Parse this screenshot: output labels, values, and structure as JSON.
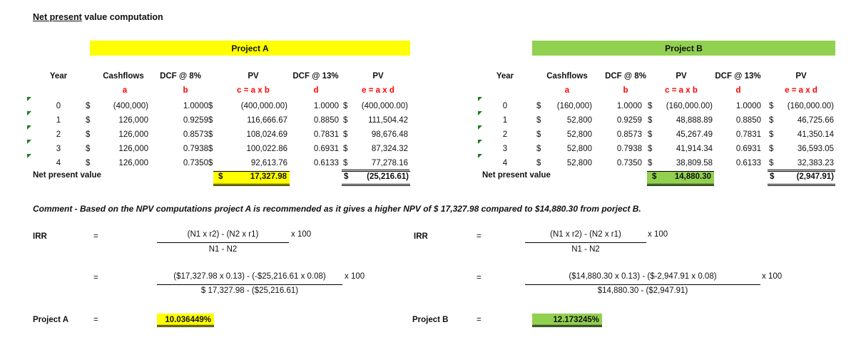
{
  "title": {
    "underlined": "Net present",
    "rest": " value computation"
  },
  "projects": [
    {
      "name": "Project A",
      "band_color": "#ffff00",
      "headers": [
        "Year",
        "Cashflows",
        "DCF @ 8%",
        "PV",
        "DCF @ 13%",
        "PV"
      ],
      "subheaders": [
        "",
        "a",
        "b",
        "c = a x b",
        "d",
        "e = a x d"
      ],
      "rows": [
        {
          "year": "0",
          "cur": "$",
          "cashflow": "(400,000)",
          "dcf8": "1.0000",
          "pv8_cur": "$",
          "pv8": "(400,000.00)",
          "dcf13": "1.0000",
          "pv13_cur": "$",
          "pv13": "(400,000.00)"
        },
        {
          "year": "1",
          "cur": "$",
          "cashflow": "126,000",
          "dcf8": "0.9259",
          "pv8_cur": "$",
          "pv8": "116,666.67",
          "dcf13": "0.8850",
          "pv13_cur": "$",
          "pv13": "111,504.42"
        },
        {
          "year": "2",
          "cur": "$",
          "cashflow": "126,000",
          "dcf8": "0.8573",
          "pv8_cur": "$",
          "pv8": "108,024.69",
          "dcf13": "0.7831",
          "pv13_cur": "$",
          "pv13": "98,676.48"
        },
        {
          "year": "3",
          "cur": "$",
          "cashflow": "126,000",
          "dcf8": "0.7938",
          "pv8_cur": "$",
          "pv8": "100,022.86",
          "dcf13": "0.6931",
          "pv13_cur": "$",
          "pv13": "87,324.32"
        },
        {
          "year": "4",
          "cur": "$",
          "cashflow": "126,000",
          "dcf8": "0.7350",
          "pv8_cur": "$",
          "pv8": "92,613.76",
          "dcf13": "0.6133",
          "pv13_cur": "$",
          "pv13": "77,278.16"
        }
      ],
      "npv_label": "Net present value",
      "npv8_cur": "$",
      "npv8": "17,327.98",
      "npv13_cur": "$",
      "npv13": "(25,216.61)"
    },
    {
      "name": "Project B",
      "band_color": "#92d050",
      "headers": [
        "Year",
        "Cashflows",
        "DCF @ 8%",
        "PV",
        "DCF @ 13%",
        "PV"
      ],
      "subheaders": [
        "",
        "a",
        "b",
        "c = a x b",
        "d",
        "e = a x d"
      ],
      "rows": [
        {
          "year": "0",
          "cur": "$",
          "cashflow": "(160,000)",
          "dcf8": "1.0000",
          "pv8_cur": "$",
          "pv8": "(160,000.00)",
          "dcf13": "1.0000",
          "pv13_cur": "$",
          "pv13": "(160,000.00)"
        },
        {
          "year": "1",
          "cur": "$",
          "cashflow": "52,800",
          "dcf8": "0.9259",
          "pv8_cur": "$",
          "pv8": "48,888.89",
          "dcf13": "0.8850",
          "pv13_cur": "$",
          "pv13": "46,725.66"
        },
        {
          "year": "2",
          "cur": "$",
          "cashflow": "52,800",
          "dcf8": "0.8573",
          "pv8_cur": "$",
          "pv8": "45,267.49",
          "dcf13": "0.7831",
          "pv13_cur": "$",
          "pv13": "41,350.14"
        },
        {
          "year": "3",
          "cur": "$",
          "cashflow": "52,800",
          "dcf8": "0.7938",
          "pv8_cur": "$",
          "pv8": "41,914.34",
          "dcf13": "0.6931",
          "pv13_cur": "$",
          "pv13": "36,593.05"
        },
        {
          "year": "4",
          "cur": "$",
          "cashflow": "52,800",
          "dcf8": "0.7350",
          "pv8_cur": "$",
          "pv8": "38,809.58",
          "dcf13": "0.6133",
          "pv13_cur": "$",
          "pv13": "32,383.23"
        }
      ],
      "npv_label": "Net present value",
      "npv8_cur": "$",
      "npv8": "14,880.30",
      "npv13_cur": "$",
      "npv13": "(2,947.91)"
    }
  ],
  "comment": "Comment - Based on the NPV computations project A is recommended as it gives a higher NPV of $ 17,327.98 compared to $14,880.30 from porject B.",
  "irr": [
    {
      "label": "IRR",
      "eq": "=",
      "formula_num": "(N1 x r2) - (N2 x r1)",
      "formula_den": "N1 - N2",
      "times": "x 100",
      "eq2": "=",
      "calc_num": "($17,327.98 x 0.13) - (-$25,216.61 x 0.08)",
      "calc_den": "$ 17,327.98 - ($25,216.61)",
      "times2": "x 100",
      "result_label": "Project A",
      "eq3": "=",
      "result": "10.036449%",
      "result_color": "#ffff00"
    },
    {
      "label": "IRR",
      "eq": "=",
      "formula_num": "(N1 x r2) - (N2 x r1)",
      "formula_den": "N1 - N2",
      "times": "x 100",
      "eq2": "=",
      "calc_num": "($14,880.30 x 0.13) - ($-2,947.91 x 0.08)",
      "calc_den": "$14,880.30 - ($2,947.91)",
      "times2": "x 100",
      "result_label": "Project B",
      "eq3": "=",
      "result": "12.173245%",
      "result_color": "#92d050"
    }
  ]
}
